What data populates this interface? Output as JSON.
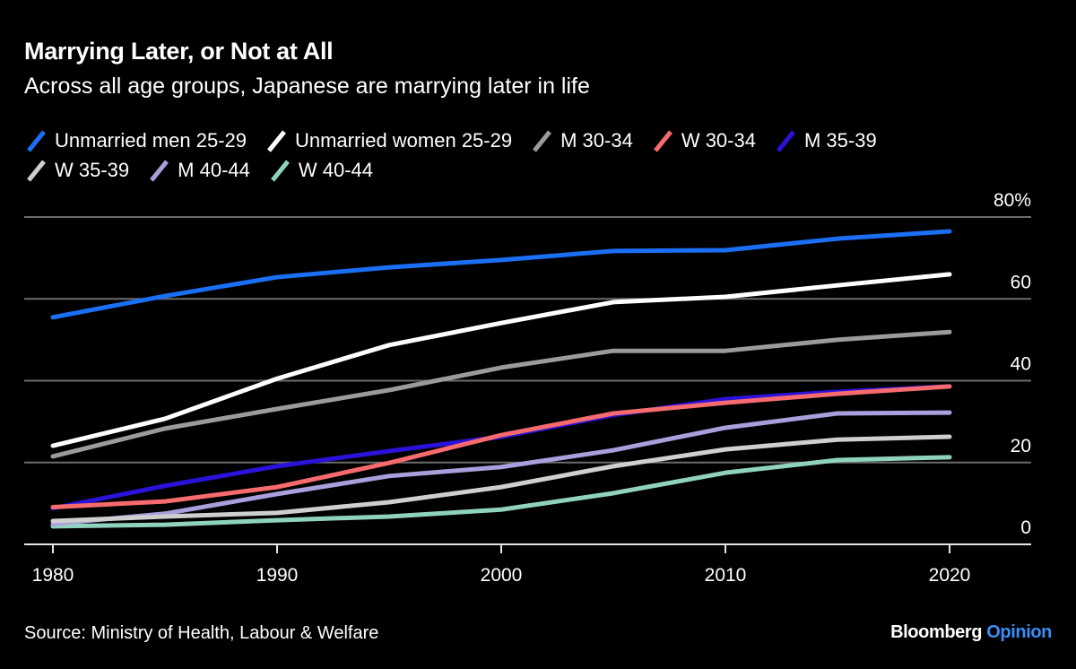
{
  "header": {
    "title": "Marrying Later, or Not at All",
    "subtitle": "Across all age groups, Japanese are marrying later in life"
  },
  "footer": {
    "source": "Source: Ministry of Health, Labour & Welfare",
    "brand_main": "Bloomberg",
    "brand_accent": "Opinion",
    "brand_accent_color": "#3a8df7"
  },
  "chart_data": {
    "type": "line",
    "title": "Marrying Later, or Not at All",
    "subtitle": "Across all age groups, Japanese are marrying later in life",
    "xlabel": "",
    "ylabel": "",
    "x": [
      1980,
      1985,
      1990,
      1995,
      2000,
      2005,
      2010,
      2015,
      2020
    ],
    "xlim": [
      1976.8,
      2023.6
    ],
    "ylim": [
      0,
      80
    ],
    "x_ticks": [
      1980,
      1990,
      2000,
      2010,
      2020
    ],
    "x_tick_labels": [
      "1980",
      "1990",
      "2000",
      "2010",
      "2020"
    ],
    "y_ticks": [
      0,
      20,
      40,
      60,
      80
    ],
    "y_tick_labels": [
      "0",
      "20",
      "40",
      "60",
      "80%"
    ],
    "y_axis_position": "right",
    "grid": true,
    "legend_position": "top-left",
    "series": [
      {
        "name": "Unmarried men 25-29",
        "color": "#1a6ff5",
        "values": [
          55.5,
          60.7,
          65.3,
          67.7,
          69.5,
          71.7,
          71.9,
          74.7,
          76.5
        ]
      },
      {
        "name": "Unmarried women 25-29",
        "color": "#ffffff",
        "values": [
          24.1,
          30.7,
          40.5,
          48.7,
          54.1,
          59.2,
          60.5,
          63.3,
          66.0
        ]
      },
      {
        "name": "M 30-34",
        "color": "#9b9b9b",
        "values": [
          21.5,
          28.3,
          33.1,
          37.7,
          43.2,
          47.3,
          47.3,
          50.0,
          51.9
        ]
      },
      {
        "name": "W 30-34",
        "color": "#f76a6d",
        "values": [
          9.1,
          10.5,
          14.0,
          19.9,
          26.7,
          32.0,
          34.6,
          36.8,
          38.6
        ]
      },
      {
        "name": "M 35-39",
        "color": "#2a12d8",
        "values": [
          8.8,
          14.3,
          19.1,
          22.8,
          26.3,
          31.6,
          35.5,
          37.3,
          38.6
        ]
      },
      {
        "name": "W 35-39",
        "color": "#cfcfcf",
        "values": [
          5.7,
          6.8,
          7.7,
          10.3,
          14.0,
          19.1,
          23.2,
          25.6,
          26.3
        ]
      },
      {
        "name": "M 40-44",
        "color": "#a99fdc",
        "values": [
          5.0,
          7.5,
          12.3,
          16.7,
          18.9,
          23.0,
          28.5,
          32.0,
          32.2
        ]
      },
      {
        "name": "W 40-44",
        "color": "#8fd3be",
        "values": [
          4.4,
          4.8,
          5.9,
          6.8,
          8.5,
          12.5,
          17.5,
          20.6,
          21.3
        ]
      }
    ],
    "legend_rows": [
      [
        0,
        1,
        2,
        3,
        4
      ],
      [
        5,
        6,
        7
      ]
    ]
  }
}
